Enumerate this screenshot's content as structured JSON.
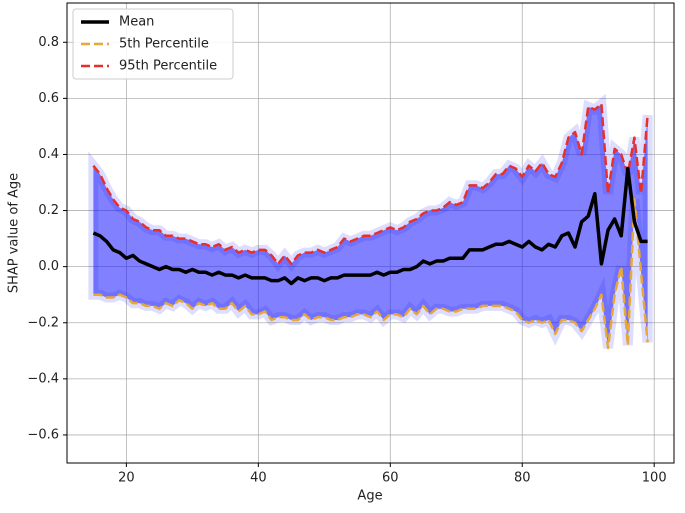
{
  "chart_data": {
    "type": "line",
    "xlabel": "Age",
    "ylabel": "SHAP value of Age",
    "x": [
      15,
      16,
      17,
      18,
      19,
      20,
      21,
      22,
      23,
      24,
      25,
      26,
      27,
      28,
      29,
      30,
      31,
      32,
      33,
      34,
      35,
      36,
      37,
      38,
      39,
      40,
      41,
      42,
      43,
      44,
      45,
      46,
      47,
      48,
      49,
      50,
      51,
      52,
      53,
      54,
      55,
      56,
      57,
      58,
      59,
      60,
      61,
      62,
      63,
      64,
      65,
      66,
      67,
      68,
      69,
      70,
      71,
      72,
      73,
      74,
      75,
      76,
      77,
      78,
      79,
      80,
      81,
      82,
      83,
      84,
      85,
      86,
      87,
      88,
      89,
      90,
      91,
      92,
      93,
      94,
      95,
      96,
      97,
      98,
      99
    ],
    "series": [
      {
        "name": "Mean",
        "color": "#000000",
        "dash": "solid",
        "values": [
          0.12,
          0.11,
          0.09,
          0.06,
          0.05,
          0.03,
          0.04,
          0.02,
          0.01,
          0.0,
          -0.01,
          0.0,
          -0.01,
          -0.01,
          -0.02,
          -0.01,
          -0.02,
          -0.02,
          -0.03,
          -0.02,
          -0.03,
          -0.03,
          -0.04,
          -0.03,
          -0.04,
          -0.04,
          -0.04,
          -0.05,
          -0.05,
          -0.04,
          -0.06,
          -0.04,
          -0.05,
          -0.04,
          -0.04,
          -0.05,
          -0.04,
          -0.04,
          -0.03,
          -0.03,
          -0.03,
          -0.03,
          -0.03,
          -0.02,
          -0.03,
          -0.02,
          -0.02,
          -0.01,
          -0.01,
          0.0,
          0.02,
          0.01,
          0.02,
          0.02,
          0.03,
          0.03,
          0.03,
          0.06,
          0.06,
          0.06,
          0.07,
          0.08,
          0.08,
          0.09,
          0.08,
          0.07,
          0.09,
          0.07,
          0.06,
          0.08,
          0.07,
          0.11,
          0.12,
          0.07,
          0.16,
          0.18,
          0.26,
          0.01,
          0.13,
          0.17,
          0.11,
          0.35,
          0.16,
          0.09,
          0.09
        ]
      },
      {
        "name": "5th Percentile",
        "color": "#e8a838",
        "dash": "dashed",
        "values": [
          -0.1,
          -0.1,
          -0.11,
          -0.11,
          -0.1,
          -0.11,
          -0.13,
          -0.13,
          -0.14,
          -0.14,
          -0.15,
          -0.13,
          -0.14,
          -0.12,
          -0.13,
          -0.15,
          -0.13,
          -0.14,
          -0.13,
          -0.15,
          -0.15,
          -0.13,
          -0.16,
          -0.14,
          -0.17,
          -0.17,
          -0.16,
          -0.19,
          -0.18,
          -0.18,
          -0.19,
          -0.19,
          -0.17,
          -0.19,
          -0.18,
          -0.18,
          -0.19,
          -0.19,
          -0.18,
          -0.18,
          -0.17,
          -0.17,
          -0.18,
          -0.16,
          -0.19,
          -0.17,
          -0.17,
          -0.18,
          -0.15,
          -0.17,
          -0.14,
          -0.17,
          -0.15,
          -0.15,
          -0.16,
          -0.16,
          -0.15,
          -0.15,
          -0.15,
          -0.14,
          -0.14,
          -0.14,
          -0.14,
          -0.15,
          -0.16,
          -0.19,
          -0.2,
          -0.19,
          -0.2,
          -0.19,
          -0.24,
          -0.19,
          -0.19,
          -0.2,
          -0.23,
          -0.19,
          -0.15,
          -0.1,
          -0.29,
          -0.1,
          0.0,
          -0.28,
          0.24,
          -0.02,
          -0.27
        ]
      },
      {
        "name": "95th Percentile",
        "color": "#e8302a",
        "dash": "dashed",
        "values": [
          0.36,
          0.33,
          0.28,
          0.24,
          0.21,
          0.2,
          0.17,
          0.16,
          0.14,
          0.13,
          0.13,
          0.11,
          0.11,
          0.1,
          0.1,
          0.09,
          0.08,
          0.08,
          0.07,
          0.08,
          0.06,
          0.07,
          0.05,
          0.06,
          0.05,
          0.06,
          0.06,
          0.04,
          0.01,
          0.04,
          0.01,
          0.04,
          0.05,
          0.05,
          0.06,
          0.05,
          0.06,
          0.07,
          0.1,
          0.09,
          0.1,
          0.11,
          0.11,
          0.12,
          0.13,
          0.14,
          0.13,
          0.14,
          0.16,
          0.17,
          0.19,
          0.2,
          0.2,
          0.21,
          0.23,
          0.22,
          0.23,
          0.29,
          0.29,
          0.28,
          0.3,
          0.33,
          0.33,
          0.36,
          0.35,
          0.32,
          0.36,
          0.34,
          0.37,
          0.33,
          0.32,
          0.37,
          0.46,
          0.48,
          0.4,
          0.57,
          0.56,
          0.58,
          0.26,
          0.42,
          0.4,
          0.33,
          0.46,
          0.26,
          0.54
        ]
      }
    ],
    "band_color": "#1a1aff",
    "xlim": [
      11,
      103
    ],
    "xticks": [
      20,
      40,
      60,
      80,
      100
    ],
    "ylim": [
      -0.7,
      0.94
    ],
    "yticks": [
      {
        "value": -0.6,
        "label": "−0.6"
      },
      {
        "value": -0.4,
        "label": "−0.4"
      },
      {
        "value": -0.2,
        "label": "−0.2"
      },
      {
        "value": 0,
        "label": "0.0"
      },
      0.2,
      0.4,
      0.6,
      0.8
    ],
    "grid": true,
    "legend": "upper left"
  }
}
